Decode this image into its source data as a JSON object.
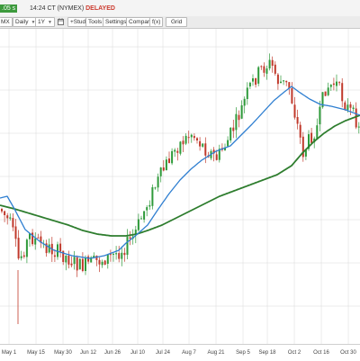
{
  "quote_bar": {
    "price_chip": ".05 s",
    "time_exchange": "14:24 CT (NYMEX)",
    "delay_status": "DELAYED"
  },
  "toolbar": {
    "symbol_suffix": "MX",
    "interval": "Daily",
    "range": "1Y",
    "study": "+Study",
    "tools": "Tools",
    "settings": "Settings",
    "compare": "Compare",
    "fx": "f(x)",
    "grid": "Grid"
  },
  "colors": {
    "up_candle": "#2e9a3a",
    "down_candle": "#c0392b",
    "short_ma": "#2f7fd1",
    "long_ma": "#2e7d2e",
    "gridline": "#d8d8d8"
  },
  "chart_data": {
    "type": "candlestick",
    "x_tick_labels": [
      "May 1",
      "May 15",
      "May 30",
      "Jun 12",
      "Jun 26",
      "Jul 10",
      "Jul 24",
      "Aug 7",
      "Aug 21",
      "Sep 5",
      "Sep 18",
      "Oct 2",
      "Oct 16",
      "Oct 30"
    ],
    "grid": true,
    "trend_path": [
      [
        0,
        232
      ],
      [
        0.03,
        252
      ],
      [
        0.05,
        290
      ],
      [
        0.08,
        262
      ],
      [
        0.12,
        274
      ],
      [
        0.17,
        282
      ],
      [
        0.22,
        296
      ],
      [
        0.27,
        290
      ],
      [
        0.31,
        284
      ],
      [
        0.34,
        276
      ],
      [
        0.37,
        262
      ],
      [
        0.4,
        232
      ],
      [
        0.43,
        206
      ],
      [
        0.46,
        182
      ],
      [
        0.49,
        162
      ],
      [
        0.53,
        148
      ],
      [
        0.57,
        166
      ],
      [
        0.6,
        176
      ],
      [
        0.63,
        156
      ],
      [
        0.66,
        130
      ],
      [
        0.69,
        98
      ],
      [
        0.72,
        78
      ],
      [
        0.75,
        70
      ],
      [
        0.77,
        90
      ],
      [
        0.8,
        96
      ],
      [
        0.82,
        132
      ],
      [
        0.84,
        170
      ],
      [
        0.86,
        152
      ],
      [
        0.88,
        140
      ],
      [
        0.9,
        98
      ],
      [
        0.93,
        92
      ],
      [
        0.96,
        118
      ],
      [
        1,
        140
      ]
    ],
    "short_ma_path": [
      [
        0,
        220
      ],
      [
        0.02,
        218
      ],
      [
        0.04,
        232
      ],
      [
        0.07,
        255
      ],
      [
        0.11,
        268
      ],
      [
        0.15,
        278
      ],
      [
        0.2,
        284
      ],
      [
        0.25,
        287
      ],
      [
        0.29,
        284
      ],
      [
        0.33,
        278
      ],
      [
        0.35,
        270
      ],
      [
        0.37,
        264
      ],
      [
        0.41,
        250
      ],
      [
        0.44,
        232
      ],
      [
        0.47,
        215
      ],
      [
        0.5,
        200
      ],
      [
        0.53,
        188
      ],
      [
        0.56,
        178
      ],
      [
        0.6,
        168
      ],
      [
        0.64,
        162
      ],
      [
        0.67,
        150
      ],
      [
        0.7,
        138
      ],
      [
        0.73,
        125
      ],
      [
        0.76,
        112
      ],
      [
        0.79,
        102
      ],
      [
        0.81,
        96
      ],
      [
        0.83,
        102
      ],
      [
        0.86,
        110
      ],
      [
        0.89,
        116
      ],
      [
        0.92,
        118
      ],
      [
        0.96,
        122
      ],
      [
        1,
        128
      ]
    ],
    "long_ma_path": [
      [
        0,
        228
      ],
      [
        0.04,
        232
      ],
      [
        0.09,
        238
      ],
      [
        0.14,
        244
      ],
      [
        0.19,
        250
      ],
      [
        0.23,
        256
      ],
      [
        0.27,
        260
      ],
      [
        0.31,
        262
      ],
      [
        0.35,
        262
      ],
      [
        0.38,
        260
      ],
      [
        0.41,
        256
      ],
      [
        0.45,
        250
      ],
      [
        0.49,
        242
      ],
      [
        0.53,
        234
      ],
      [
        0.57,
        226
      ],
      [
        0.61,
        218
      ],
      [
        0.65,
        212
      ],
      [
        0.69,
        206
      ],
      [
        0.73,
        200
      ],
      [
        0.77,
        194
      ],
      [
        0.81,
        184
      ],
      [
        0.84,
        170
      ],
      [
        0.87,
        158
      ],
      [
        0.9,
        148
      ],
      [
        0.93,
        140
      ],
      [
        0.96,
        134
      ],
      [
        1,
        128
      ]
    ]
  }
}
